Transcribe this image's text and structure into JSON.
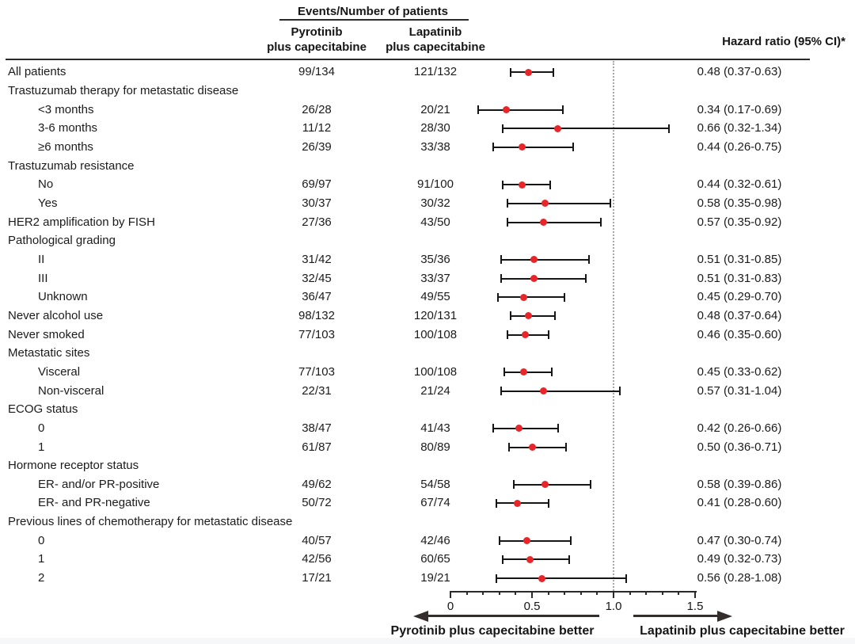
{
  "chart_data": {
    "type": "forest",
    "title": "Events/Number of patients",
    "col_headers": {
      "pyrotinib": [
        "Pyrotinib",
        "plus capecitabine"
      ],
      "lapatinib": [
        "Lapatinib",
        "plus capecitabine"
      ],
      "hazard_ratio": "Hazard ratio (95% CI)*"
    },
    "x_axis": {
      "tick_values": [
        0,
        0.5,
        1.0,
        1.5
      ],
      "tick_labels": [
        "0",
        "0.5",
        "1.0",
        "1.5"
      ],
      "minor_tick_step": 0.1,
      "range": [
        0,
        1.5
      ],
      "reference_line": 1.0
    },
    "rows": [
      {
        "label": "All patients",
        "indent": 0,
        "pyrotinib": "99/134",
        "lapatinib": "121/132",
        "hr": 0.48,
        "lo": 0.37,
        "hi": 0.63,
        "hr_text": "0.48 (0.37-0.63)"
      },
      {
        "label": "Trastuzumab therapy for metastatic disease",
        "indent": 0,
        "group": true
      },
      {
        "label": "<3 months",
        "indent": 1,
        "pyrotinib": "26/28",
        "lapatinib": "20/21",
        "hr": 0.34,
        "lo": 0.17,
        "hi": 0.69,
        "hr_text": "0.34 (0.17-0.69)"
      },
      {
        "label": "3-6 months",
        "indent": 1,
        "pyrotinib": "11/12",
        "lapatinib": "28/30",
        "hr": 0.66,
        "lo": 0.32,
        "hi": 1.34,
        "hr_text": "0.66 (0.32-1.34)"
      },
      {
        "label": "≥6 months",
        "indent": 1,
        "pyrotinib": "26/39",
        "lapatinib": "33/38",
        "hr": 0.44,
        "lo": 0.26,
        "hi": 0.75,
        "hr_text": "0.44 (0.26-0.75)"
      },
      {
        "label": "Trastuzumab resistance",
        "indent": 0,
        "group": true
      },
      {
        "label": "No",
        "indent": 1,
        "pyrotinib": "69/97",
        "lapatinib": "91/100",
        "hr": 0.44,
        "lo": 0.32,
        "hi": 0.61,
        "hr_text": "0.44 (0.32-0.61)"
      },
      {
        "label": "Yes",
        "indent": 1,
        "pyrotinib": "30/37",
        "lapatinib": "30/32",
        "hr": 0.58,
        "lo": 0.35,
        "hi": 0.98,
        "hr_text": "0.58 (0.35-0.98)"
      },
      {
        "label": "HER2 amplification by FISH",
        "indent": 0,
        "pyrotinib": "27/36",
        "lapatinib": "43/50",
        "hr": 0.57,
        "lo": 0.35,
        "hi": 0.92,
        "hr_text": "0.57 (0.35-0.92)"
      },
      {
        "label": "Pathological grading",
        "indent": 0,
        "group": true
      },
      {
        "label": "II",
        "indent": 1,
        "pyrotinib": "31/42",
        "lapatinib": "35/36",
        "hr": 0.51,
        "lo": 0.31,
        "hi": 0.85,
        "hr_text": "0.51 (0.31-0.85)"
      },
      {
        "label": "III",
        "indent": 1,
        "pyrotinib": "32/45",
        "lapatinib": "33/37",
        "hr": 0.51,
        "lo": 0.31,
        "hi": 0.83,
        "hr_text": "0.51 (0.31-0.83)"
      },
      {
        "label": "Unknown",
        "indent": 1,
        "pyrotinib": "36/47",
        "lapatinib": "49/55",
        "hr": 0.45,
        "lo": 0.29,
        "hi": 0.7,
        "hr_text": "0.45 (0.29-0.70)"
      },
      {
        "label": "Never alcohol use",
        "indent": 0,
        "pyrotinib": "98/132",
        "lapatinib": "120/131",
        "hr": 0.48,
        "lo": 0.37,
        "hi": 0.64,
        "hr_text": "0.48 (0.37-0.64)"
      },
      {
        "label": "Never smoked",
        "indent": 0,
        "pyrotinib": "77/103",
        "lapatinib": "100/108",
        "hr": 0.46,
        "lo": 0.35,
        "hi": 0.6,
        "hr_text": "0.46 (0.35-0.60)"
      },
      {
        "label": "Metastatic sites",
        "indent": 0,
        "group": true
      },
      {
        "label": "Visceral",
        "indent": 1,
        "pyrotinib": "77/103",
        "lapatinib": "100/108",
        "hr": 0.45,
        "lo": 0.33,
        "hi": 0.62,
        "hr_text": "0.45 (0.33-0.62)"
      },
      {
        "label": "Non-visceral",
        "indent": 1,
        "pyrotinib": "22/31",
        "lapatinib": "21/24",
        "hr": 0.57,
        "lo": 0.31,
        "hi": 1.04,
        "hr_text": "0.57 (0.31-1.04)"
      },
      {
        "label": "ECOG status",
        "indent": 0,
        "group": true
      },
      {
        "label": "0",
        "indent": 1,
        "pyrotinib": "38/47",
        "lapatinib": "41/43",
        "hr": 0.42,
        "lo": 0.26,
        "hi": 0.66,
        "hr_text": "0.42 (0.26-0.66)"
      },
      {
        "label": "1",
        "indent": 1,
        "pyrotinib": "61/87",
        "lapatinib": "80/89",
        "hr": 0.5,
        "lo": 0.36,
        "hi": 0.71,
        "hr_text": "0.50 (0.36-0.71)"
      },
      {
        "label": "Hormone receptor status",
        "indent": 0,
        "group": true
      },
      {
        "label": "ER- and/or PR-positive",
        "indent": 1,
        "pyrotinib": "49/62",
        "lapatinib": "54/58",
        "hr": 0.58,
        "lo": 0.39,
        "hi": 0.86,
        "hr_text": "0.58 (0.39-0.86)"
      },
      {
        "label": "ER- and PR-negative",
        "indent": 1,
        "pyrotinib": "50/72",
        "lapatinib": "67/74",
        "hr": 0.41,
        "lo": 0.28,
        "hi": 0.6,
        "hr_text": "0.41 (0.28-0.60)"
      },
      {
        "label": "Previous lines of chemotherapy for metastatic disease",
        "indent": 0,
        "group": true
      },
      {
        "label": "0",
        "indent": 1,
        "pyrotinib": "40/57",
        "lapatinib": "42/46",
        "hr": 0.47,
        "lo": 0.3,
        "hi": 0.74,
        "hr_text": "0.47 (0.30-0.74)"
      },
      {
        "label": "1",
        "indent": 1,
        "pyrotinib": "42/56",
        "lapatinib": "60/65",
        "hr": 0.49,
        "lo": 0.32,
        "hi": 0.73,
        "hr_text": "0.49 (0.32-0.73)"
      },
      {
        "label": "2",
        "indent": 1,
        "pyrotinib": "17/21",
        "lapatinib": "19/21",
        "hr": 0.56,
        "lo": 0.28,
        "hi": 1.08,
        "hr_text": "0.56 (0.28-1.08)"
      }
    ],
    "arrows": {
      "left_label": "Pyrotinib plus capecitabine better",
      "right_label": "Lapatinib plus capecitabine better"
    },
    "colors": {
      "point": "#e8262a",
      "ci_line": "#161616",
      "reference_line": "#a8a8a8"
    }
  }
}
